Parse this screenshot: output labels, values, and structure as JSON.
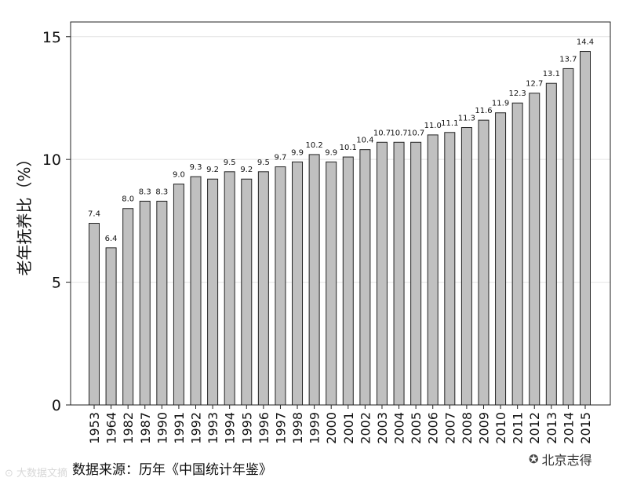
{
  "chart_data": {
    "type": "bar",
    "categories": [
      "1953",
      "1964",
      "1982",
      "1987",
      "1990",
      "1991",
      "1992",
      "1993",
      "1994",
      "1995",
      "1996",
      "1997",
      "1998",
      "1999",
      "2000",
      "2001",
      "2002",
      "2003",
      "2004",
      "2005",
      "2006",
      "2007",
      "2008",
      "2009",
      "2010",
      "2011",
      "2012",
      "2013",
      "2014",
      "2015"
    ],
    "values": [
      7.4,
      6.4,
      8.0,
      8.3,
      8.3,
      9.0,
      9.3,
      9.2,
      9.5,
      9.2,
      9.5,
      9.7,
      9.9,
      10.2,
      9.9,
      10.1,
      10.4,
      10.7,
      10.7,
      10.7,
      11.0,
      11.1,
      11.3,
      11.6,
      11.9,
      12.3,
      12.7,
      13.1,
      13.7,
      14.4
    ],
    "value_labels": [
      "7.4",
      "6.4",
      "8.0",
      "8.3",
      "8.3",
      "9.0",
      "9.3",
      "9.2",
      "9.5",
      "9.2",
      "9.5",
      "9.7",
      "9.9",
      "10.2",
      "9.9",
      "10.1",
      "10.4",
      "10.7",
      "10.7",
      "10.7",
      "11.0",
      "11.1",
      "11.3",
      "11.6",
      "11.9",
      "12.3",
      "12.7",
      "13.1",
      "13.7",
      "14.4"
    ],
    "ylabel": "老年抚养比（%）",
    "xlabel": "",
    "ylim": [
      0,
      15.6
    ],
    "yticks": [
      0,
      5,
      10,
      15
    ],
    "grid": true,
    "bar_color": "#c0c0c0",
    "bar_edge_color": "#222222"
  },
  "source_note": "数据来源：历年《中国统计年鉴》",
  "watermark_left": "⊙ 大数据文摘",
  "watermark_right": "北京志得",
  "watermark_right_icon": "wechat-icon"
}
